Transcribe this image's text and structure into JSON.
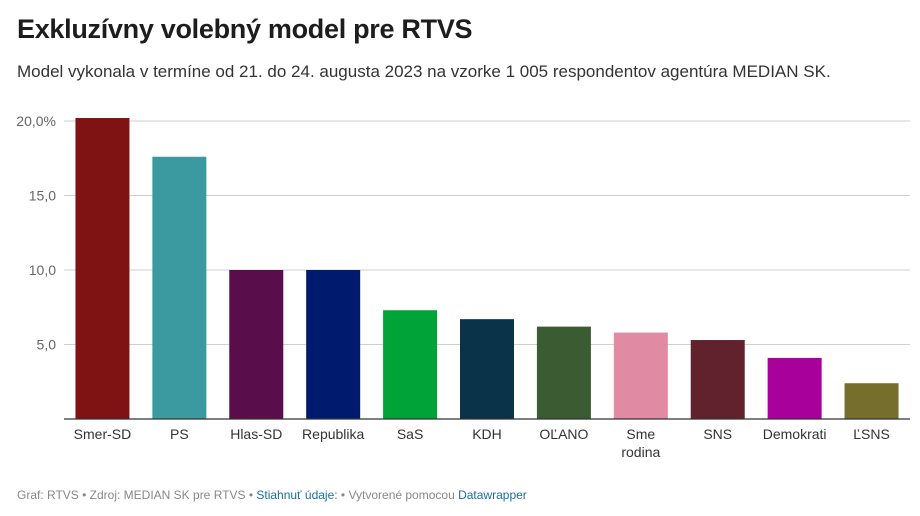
{
  "header": {
    "title": "Exkluzívny volebný model pre RTVS",
    "subtitle": "Model vykonala v termíne od 21. do 24. augusta 2023 na vzorke 1 005 respondentov agentúra MEDIAN SK."
  },
  "chart_data": {
    "type": "bar",
    "title": "Exkluzívny volebný model pre RTVS",
    "subtitle": "Model vykonala v termíne od 21. do 24. augusta 2023 na vzorke 1 005 respondentov agentúra MEDIAN SK.",
    "xlabel": "",
    "ylabel": "",
    "ylim": [
      0,
      20
    ],
    "yticks": [
      {
        "value": 20,
        "label": "20,0%"
      },
      {
        "value": 15,
        "label": "15,0"
      },
      {
        "value": 10,
        "label": "10,0"
      },
      {
        "value": 5,
        "label": "5,0"
      }
    ],
    "grid": true,
    "categories": [
      {
        "label": [
          "Smer-SD"
        ],
        "value": 20.2,
        "color": "#7f1213"
      },
      {
        "label": [
          "PS"
        ],
        "value": 17.6,
        "color": "#3a9aa0"
      },
      {
        "label": [
          "Hlas-SD"
        ],
        "value": 10.0,
        "color": "#590d4b"
      },
      {
        "label": [
          "Republika"
        ],
        "value": 10.0,
        "color": "#001a6e"
      },
      {
        "label": [
          "SaS"
        ],
        "value": 7.3,
        "color": "#00a338"
      },
      {
        "label": [
          "KDH"
        ],
        "value": 6.7,
        "color": "#0a3349"
      },
      {
        "label": [
          "OĽANO"
        ],
        "value": 6.2,
        "color": "#3b5c33"
      },
      {
        "label": [
          "Sme",
          "rodina"
        ],
        "value": 5.8,
        "color": "#e08aa3"
      },
      {
        "label": [
          "SNS"
        ],
        "value": 5.3,
        "color": "#62222d"
      },
      {
        "label": [
          "Demokrati"
        ],
        "value": 4.1,
        "color": "#a8009b"
      },
      {
        "label": [
          "ĽSNS"
        ],
        "value": 2.4,
        "color": "#756e2c"
      }
    ]
  },
  "footer": {
    "credit": "Graf: RTVS • Zdroj: MEDIAN SK pre RTVS • ",
    "download_link": "Stiahnuť údaje:",
    "created_with": " • Vytvorené pomocou ",
    "tool_link": "Datawrapper"
  }
}
